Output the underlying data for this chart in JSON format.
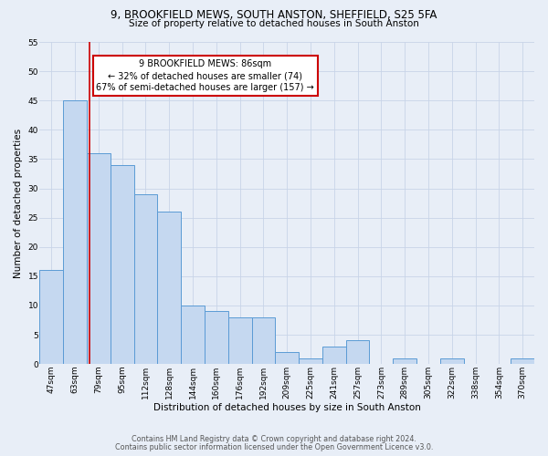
{
  "title": "9, BROOKFIELD MEWS, SOUTH ANSTON, SHEFFIELD, S25 5FA",
  "subtitle": "Size of property relative to detached houses in South Anston",
  "xlabel": "Distribution of detached houses by size in South Anston",
  "ylabel": "Number of detached properties",
  "footnote1": "Contains HM Land Registry data © Crown copyright and database right 2024.",
  "footnote2": "Contains public sector information licensed under the Open Government Licence v3.0.",
  "categories": [
    "47sqm",
    "63sqm",
    "79sqm",
    "95sqm",
    "112sqm",
    "128sqm",
    "144sqm",
    "160sqm",
    "176sqm",
    "192sqm",
    "209sqm",
    "225sqm",
    "241sqm",
    "257sqm",
    "273sqm",
    "289sqm",
    "305sqm",
    "322sqm",
    "338sqm",
    "354sqm",
    "370sqm"
  ],
  "values": [
    16,
    45,
    36,
    34,
    29,
    26,
    10,
    9,
    8,
    8,
    2,
    1,
    3,
    4,
    0,
    1,
    0,
    1,
    0,
    0,
    1
  ],
  "bar_color": "#c5d8f0",
  "bar_edge_color": "#5b9bd5",
  "grid_color": "#c8d4e8",
  "background_color": "#e8eef7",
  "annotation_line1": "9 BROOKFIELD MEWS: 86sqm",
  "annotation_line2": "← 32% of detached houses are smaller (74)",
  "annotation_line3": "67% of semi-detached houses are larger (157) →",
  "annotation_box_color": "#ffffff",
  "annotation_box_edge_color": "#cc0000",
  "red_line_x": 1.62,
  "ylim": [
    0,
    55
  ],
  "yticks": [
    0,
    5,
    10,
    15,
    20,
    25,
    30,
    35,
    40,
    45,
    50,
    55
  ],
  "title_fontsize": 8.5,
  "subtitle_fontsize": 7.5,
  "ylabel_fontsize": 7.5,
  "xlabel_fontsize": 7.5,
  "tick_fontsize": 6.5,
  "annot_fontsize": 7.0,
  "footnote_fontsize": 5.8
}
